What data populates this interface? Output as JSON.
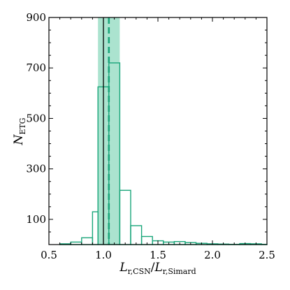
{
  "chart_data": {
    "type": "histogram",
    "xlabel": {
      "main": "L",
      "sub1": "r,CSN",
      "sep": "/",
      "main2": "L",
      "sub2": "r,Simard"
    },
    "ylabel": {
      "main": "N",
      "sub": "ETG"
    },
    "xlim": [
      0.5,
      2.5
    ],
    "ylim": [
      0,
      900
    ],
    "xticks": [
      "0.5",
      "1.0",
      "1.5",
      "2.0",
      "2.5"
    ],
    "yticks": [
      "100",
      "300",
      "500",
      "700",
      "900"
    ],
    "bin_edges": [
      0.5,
      0.6,
      0.7,
      0.8,
      0.9,
      0.95,
      1.05,
      1.15,
      1.25,
      1.35,
      1.45,
      1.55,
      1.65,
      1.75,
      1.85,
      1.95,
      2.05,
      2.15,
      2.25,
      2.35,
      2.45,
      2.5
    ],
    "counts": [
      0,
      3,
      10,
      27,
      130,
      625,
      720,
      215,
      75,
      32,
      15,
      10,
      12,
      8,
      5,
      3,
      2,
      1,
      4,
      3,
      1
    ],
    "vlines": [
      {
        "x": 1.0,
        "style": "solid",
        "color": "#000000"
      },
      {
        "x": 1.05,
        "style": "dashed",
        "color": "#1aa67a"
      }
    ],
    "shaded_band": {
      "x_range": [
        0.95,
        1.15
      ],
      "color": "#8fd9bf"
    },
    "series_color": "#1aa67a",
    "grid": false
  }
}
